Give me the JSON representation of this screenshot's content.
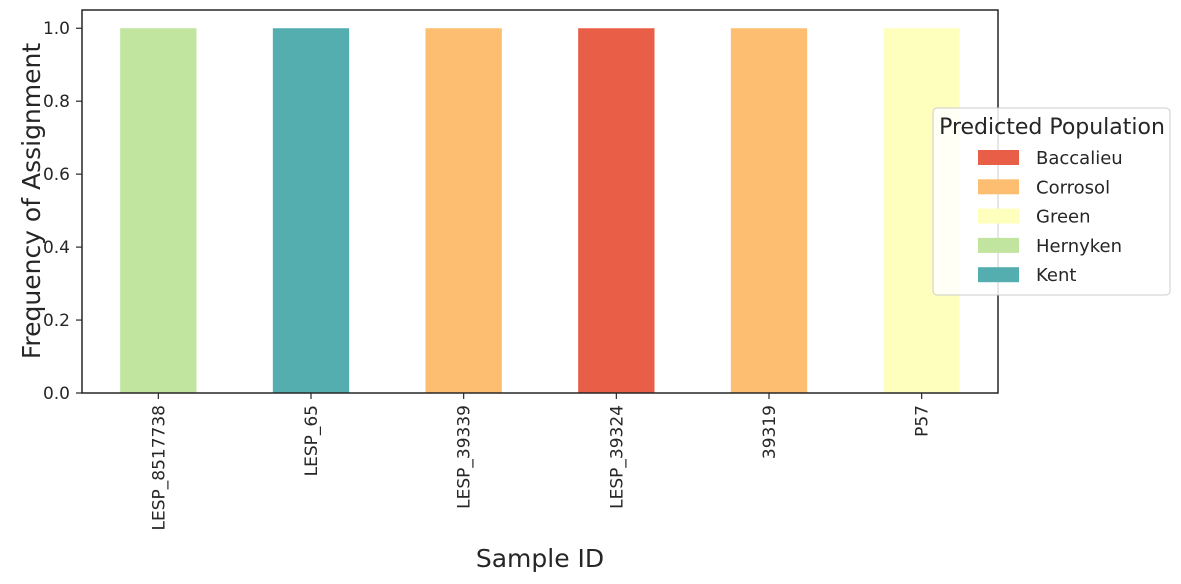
{
  "chart_data": {
    "type": "bar",
    "stacked": true,
    "xlabel": "Sample ID",
    "ylabel": "Frequency of Assignment",
    "ylim": [
      0,
      1.05
    ],
    "yticks": [
      "0.0",
      "0.2",
      "0.4",
      "0.6",
      "0.8",
      "1.0"
    ],
    "ytick_values": [
      0,
      0.2,
      0.4,
      0.6,
      0.8,
      1.0
    ],
    "categories": [
      "LESP_8517738",
      "LESP_65",
      "LESP_39339",
      "LESP_39324",
      "39319",
      "P57"
    ],
    "series": [
      {
        "name": "Baccalieu",
        "color": "#e95e47",
        "values": [
          0,
          0,
          0,
          1,
          0,
          0
        ]
      },
      {
        "name": "Corrosol",
        "color": "#fdbe71",
        "values": [
          0,
          0,
          1,
          0,
          1,
          0
        ]
      },
      {
        "name": "Green",
        "color": "#ffffbd",
        "values": [
          0,
          0,
          0,
          0,
          0,
          1
        ]
      },
      {
        "name": "Hernyken",
        "color": "#c1e59e",
        "values": [
          1,
          0,
          0,
          0,
          0,
          0
        ]
      },
      {
        "name": "Kent",
        "color": "#54aeaf",
        "values": [
          0,
          1,
          0,
          0,
          0,
          0
        ]
      }
    ],
    "legend": {
      "title": "Predicted Population",
      "placement": "right"
    },
    "grid": false
  }
}
